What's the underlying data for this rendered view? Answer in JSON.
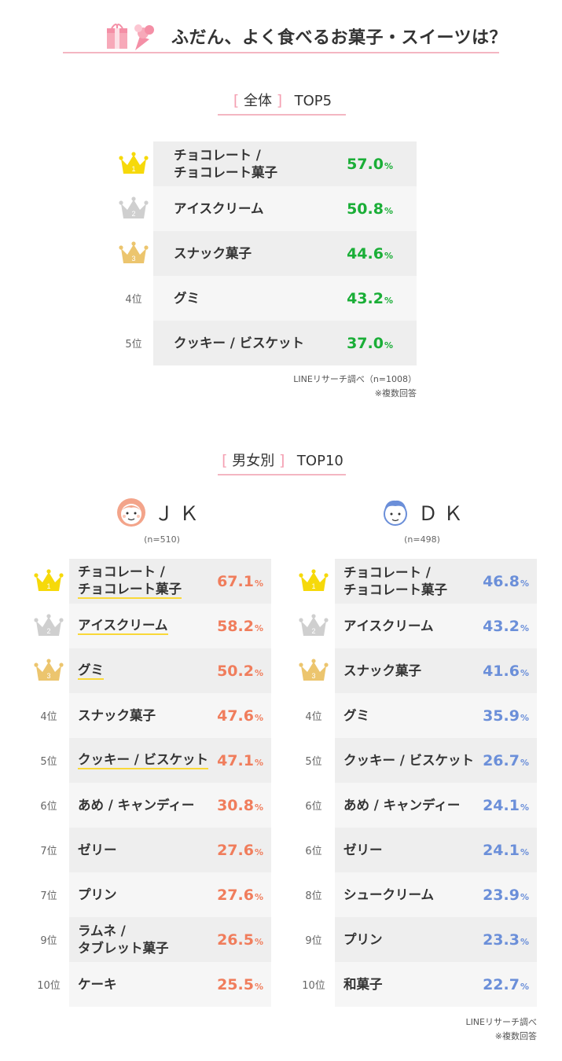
{
  "header": {
    "title": "ふだん、よく食べるお菓子・スイーツは？",
    "icon": "sweets-icon"
  },
  "colors": {
    "overall": "#1aae37",
    "jk": "#f07d5c",
    "dk": "#6b8fd9",
    "accent": "#f4a0b2",
    "highlight": "#f9d838",
    "gold": "#f6d90a",
    "silver": "#cfcfcf",
    "bronze": "#ecc56e"
  },
  "overall": {
    "bracket_open": "[",
    "bracket_close": "]",
    "name": "全体",
    "tag": "TOP5",
    "pct_unit": "%",
    "rows": [
      {
        "rank": "1",
        "rank_type": "gold-crown",
        "label": "チョコレート /\nチョコレート菓子",
        "value": "57.0"
      },
      {
        "rank": "2",
        "rank_type": "silver-crown",
        "label": "アイスクリーム",
        "value": "50.8"
      },
      {
        "rank": "3",
        "rank_type": "bronze-crown",
        "label": "スナック菓子",
        "value": "44.6"
      },
      {
        "rank": "4位",
        "rank_type": "text",
        "label": "グミ",
        "value": "43.2"
      },
      {
        "rank": "5位",
        "rank_type": "text",
        "label": "クッキー / ビスケット",
        "value": "37.0"
      }
    ],
    "source_line1": "LINEリサーチ調べ（n=1008）",
    "source_line2": "※複数回答"
  },
  "gender": {
    "bracket_open": "[",
    "bracket_close": "]",
    "name": "男女別",
    "tag": "TOP10",
    "jk": {
      "label": "ＪＫ",
      "n": "(n=510)",
      "avatar": "girl-face-icon",
      "pct_unit": "%",
      "rows": [
        {
          "rank": "1",
          "rank_type": "gold-crown",
          "label": "チョコレート /\nチョコレート菓子",
          "value": "67.1",
          "highlight": true
        },
        {
          "rank": "2",
          "rank_type": "silver-crown",
          "label": "アイスクリーム",
          "value": "58.2",
          "highlight": true
        },
        {
          "rank": "3",
          "rank_type": "bronze-crown",
          "label": "グミ",
          "value": "50.2",
          "highlight": true
        },
        {
          "rank": "4位",
          "rank_type": "text",
          "label": "スナック菓子",
          "value": "47.6",
          "highlight": false
        },
        {
          "rank": "5位",
          "rank_type": "text",
          "label": "クッキー / ビスケット",
          "value": "47.1",
          "highlight": true
        },
        {
          "rank": "6位",
          "rank_type": "text",
          "label": "あめ / キャンディー",
          "value": "30.8",
          "highlight": false
        },
        {
          "rank": "7位",
          "rank_type": "text",
          "label": "ゼリー",
          "value": "27.6",
          "highlight": false
        },
        {
          "rank": "7位",
          "rank_type": "text",
          "label": "プリン",
          "value": "27.6",
          "highlight": false
        },
        {
          "rank": "9位",
          "rank_type": "text",
          "label": "ラムネ /\nタブレット菓子",
          "value": "26.5",
          "highlight": false
        },
        {
          "rank": "10位",
          "rank_type": "text",
          "label": "ケーキ",
          "value": "25.5",
          "highlight": false
        }
      ]
    },
    "dk": {
      "label": "ＤＫ",
      "n": "(n=498)",
      "avatar": "boy-face-icon",
      "pct_unit": "%",
      "rows": [
        {
          "rank": "1",
          "rank_type": "gold-crown",
          "label": "チョコレート /\nチョコレート菓子",
          "value": "46.8",
          "highlight": false
        },
        {
          "rank": "2",
          "rank_type": "silver-crown",
          "label": "アイスクリーム",
          "value": "43.2",
          "highlight": false
        },
        {
          "rank": "3",
          "rank_type": "bronze-crown",
          "label": "スナック菓子",
          "value": "41.6",
          "highlight": false
        },
        {
          "rank": "4位",
          "rank_type": "text",
          "label": "グミ",
          "value": "35.9",
          "highlight": false
        },
        {
          "rank": "5位",
          "rank_type": "text",
          "label": "クッキー / ビスケット",
          "value": "26.7",
          "highlight": false
        },
        {
          "rank": "6位",
          "rank_type": "text",
          "label": "あめ / キャンディー",
          "value": "24.1",
          "highlight": false
        },
        {
          "rank": "6位",
          "rank_type": "text",
          "label": "ゼリー",
          "value": "24.1",
          "highlight": false
        },
        {
          "rank": "8位",
          "rank_type": "text",
          "label": "シュークリーム",
          "value": "23.9",
          "highlight": false
        },
        {
          "rank": "9位",
          "rank_type": "text",
          "label": "プリン",
          "value": "23.3",
          "highlight": false
        },
        {
          "rank": "10位",
          "rank_type": "text",
          "label": "和菓子",
          "value": "22.7",
          "highlight": false
        }
      ]
    },
    "source_line1": "LINEリサーチ調べ",
    "source_line2": "※複数回答"
  },
  "chart_data": [
    {
      "type": "table",
      "title": "全体 TOP5",
      "categories": [
        "チョコレート / チョコレート菓子",
        "アイスクリーム",
        "スナック菓子",
        "グミ",
        "クッキー / ビスケット"
      ],
      "values": [
        57.0,
        50.8,
        44.6,
        43.2,
        37.0
      ],
      "unit": "%"
    },
    {
      "type": "table",
      "title": "男女別 TOP10 — ＪＫ",
      "categories": [
        "チョコレート / チョコレート菓子",
        "アイスクリーム",
        "グミ",
        "スナック菓子",
        "クッキー / ビスケット",
        "あめ / キャンディー",
        "ゼリー",
        "プリン",
        "ラムネ / タブレット菓子",
        "ケーキ"
      ],
      "values": [
        67.1,
        58.2,
        50.2,
        47.6,
        47.1,
        30.8,
        27.6,
        27.6,
        26.5,
        25.5
      ],
      "unit": "%"
    },
    {
      "type": "table",
      "title": "男女別 TOP10 — ＤＫ",
      "categories": [
        "チョコレート / チョコレート菓子",
        "アイスクリーム",
        "スナック菓子",
        "グミ",
        "クッキー / ビスケット",
        "あめ / キャンディー",
        "ゼリー",
        "シュークリーム",
        "プリン",
        "和菓子"
      ],
      "values": [
        46.8,
        43.2,
        41.6,
        35.9,
        26.7,
        24.1,
        24.1,
        23.9,
        23.3,
        22.7
      ],
      "unit": "%"
    }
  ]
}
